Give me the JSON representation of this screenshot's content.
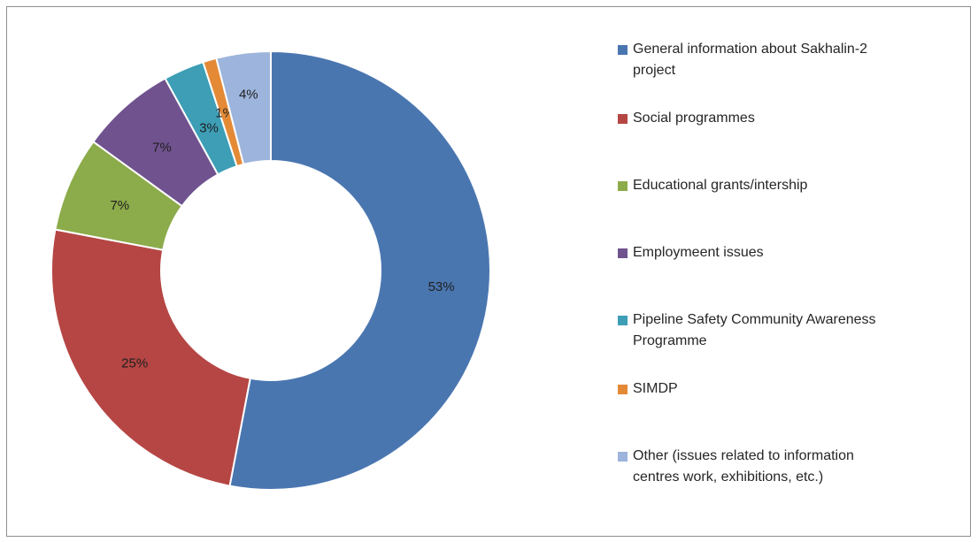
{
  "chart_data": {
    "type": "pie",
    "variant": "donut",
    "title": "",
    "legend_position": "right",
    "slices": [
      {
        "label": "General information about Sakhalin-2\nproject",
        "value": 53,
        "display": "53%",
        "color": "#4a76b0"
      },
      {
        "label": "Social programmes",
        "value": 25,
        "display": "25%",
        "color": "#b54644"
      },
      {
        "label": "Educational grants/intership",
        "value": 7,
        "display": "7%",
        "color": "#8cab4b"
      },
      {
        "label": "Employmeent issues",
        "value": 7,
        "display": "7%",
        "color": "#6f528e"
      },
      {
        "label": "Pipeline Safety Community Awareness\nProgramme",
        "value": 3,
        "display": "3%",
        "color": "#3d9eb6"
      },
      {
        "label": "SIMDP",
        "value": 1,
        "display": "1%",
        "color": "#e48a37"
      },
      {
        "label": "Other (issues related to information\ncentres work, exhibitions, etc.)",
        "value": 4,
        "display": "4%",
        "color": "#9db4dc"
      }
    ]
  }
}
